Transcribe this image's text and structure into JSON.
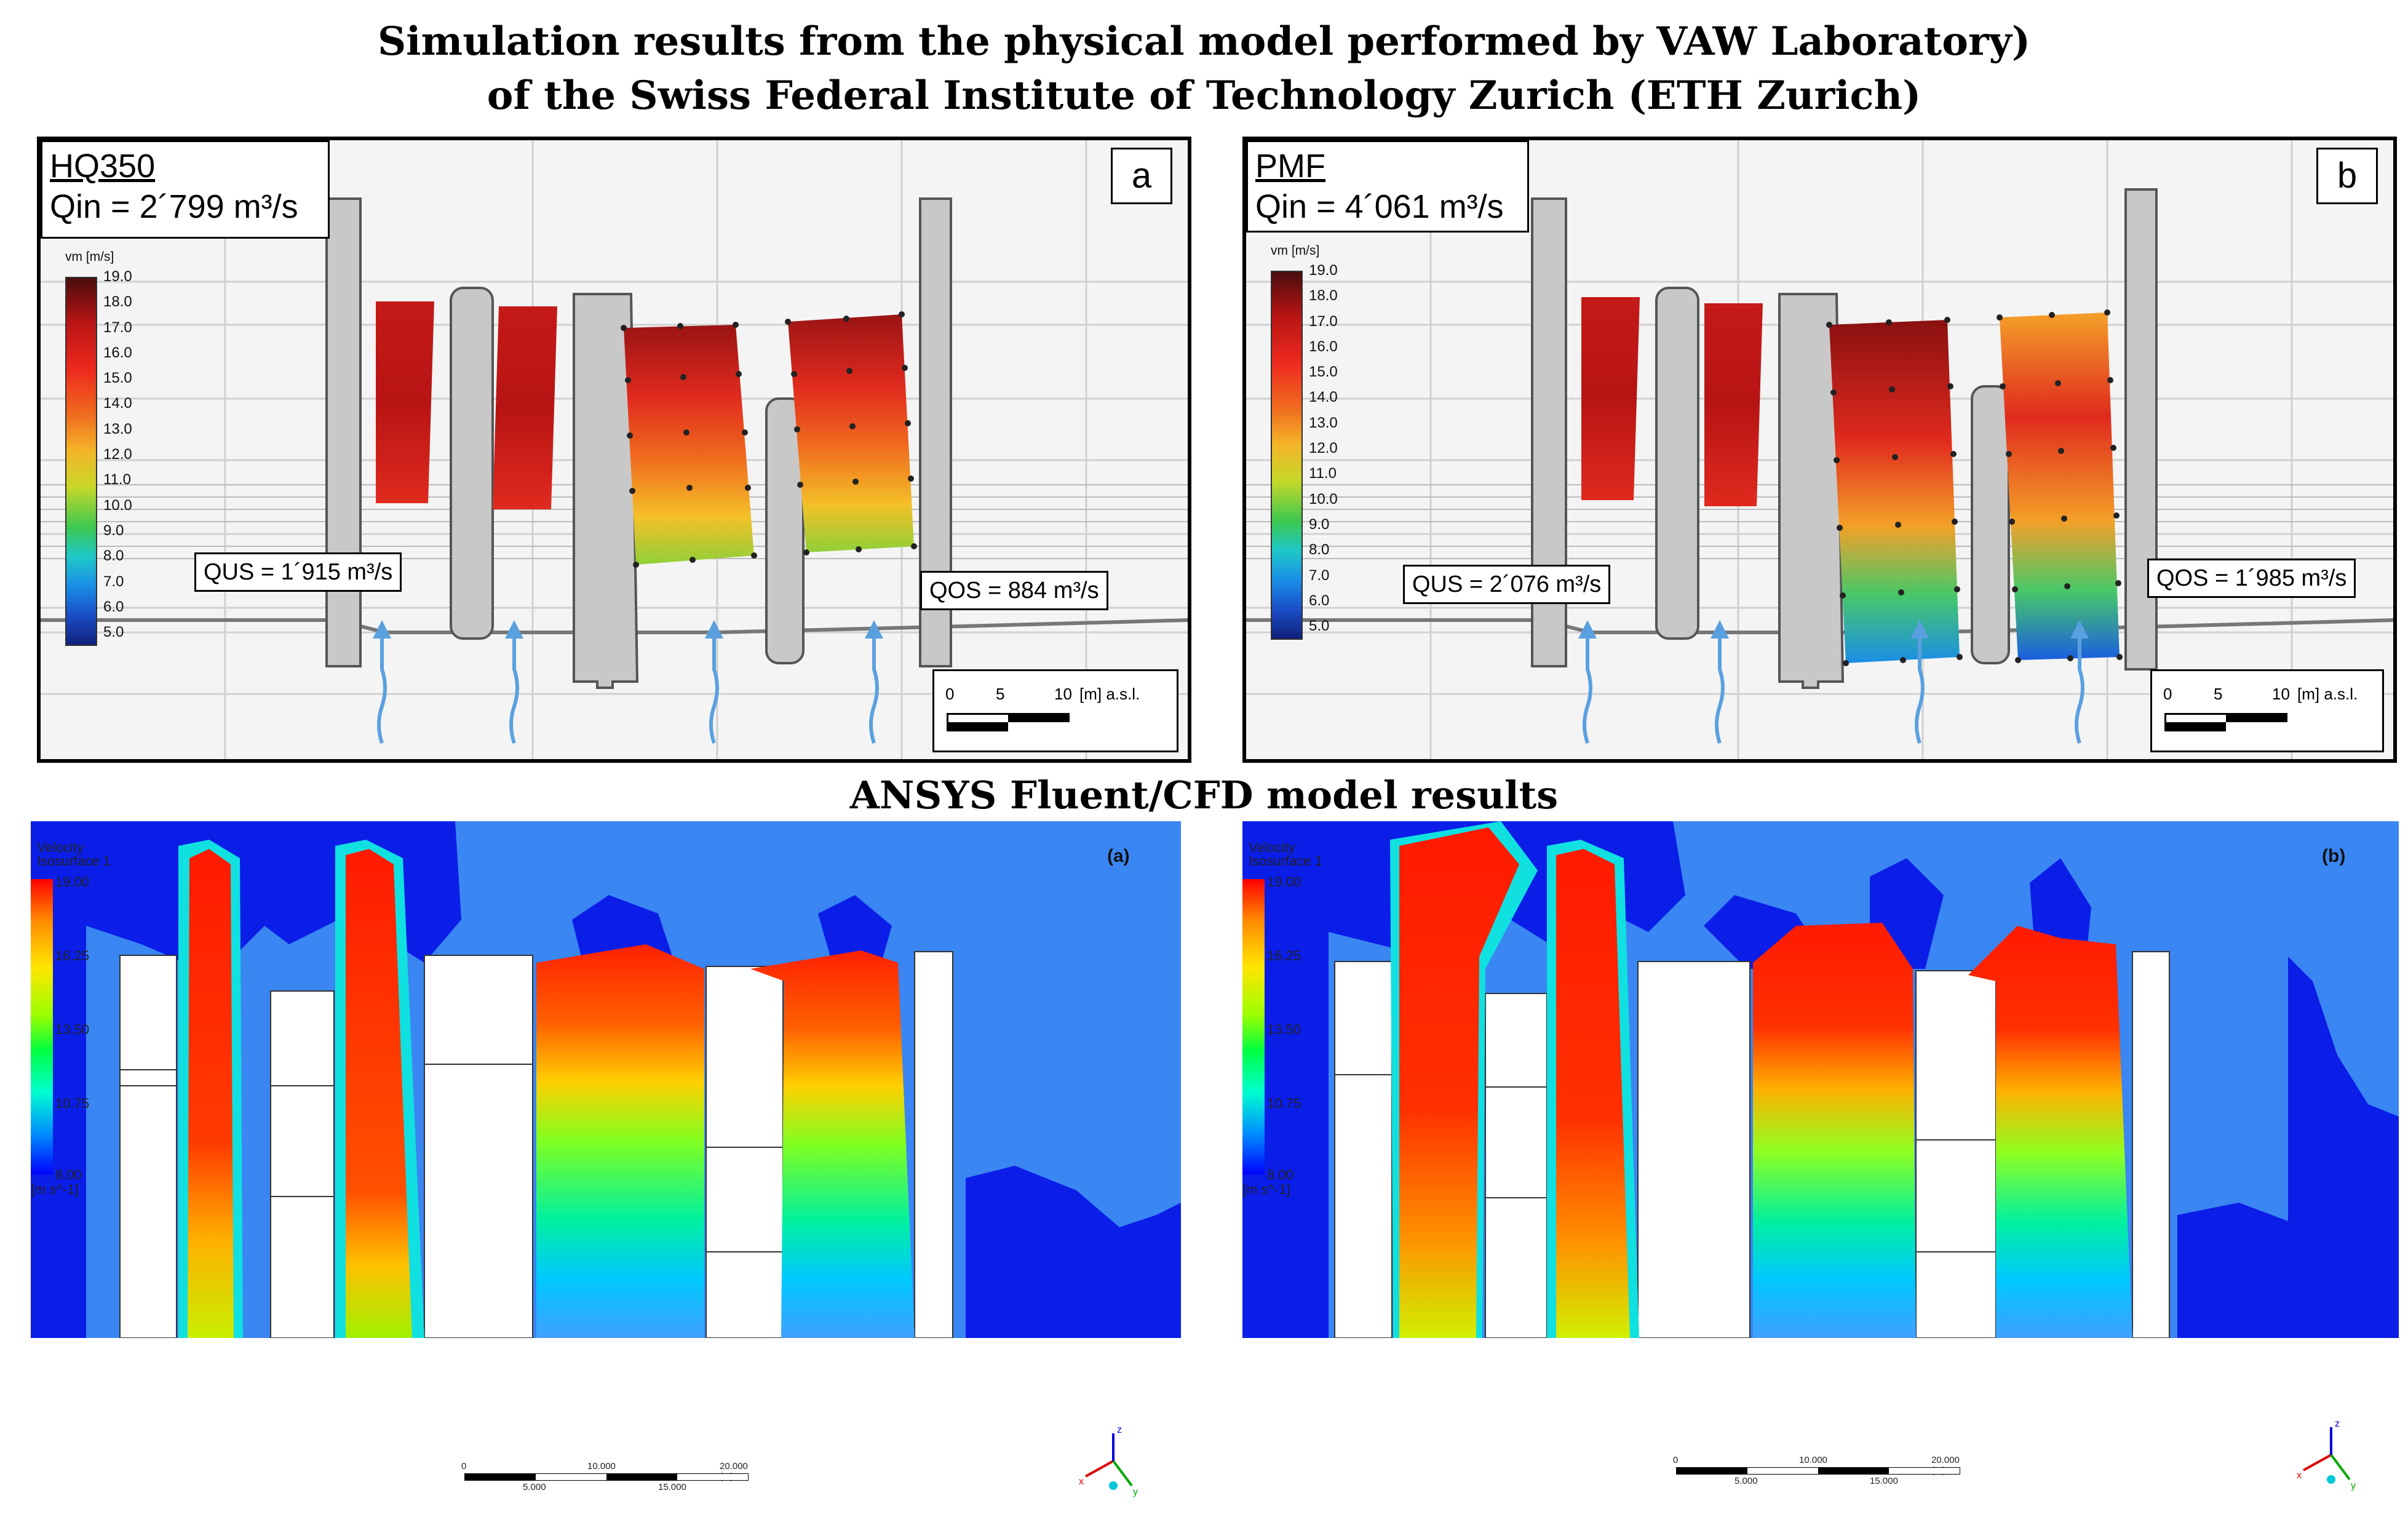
{
  "title": {
    "line1": "Simulation results from the physical model performed by VAW Laboratory)",
    "line2": "of the Swiss Federal Institute of Technology Zurich (ETH Zurich)"
  },
  "section2_title": "ANSYS Fluent/CFD model results",
  "physical": {
    "legend_unit": "vm [m/s]",
    "legend_ticks": [
      "19.0",
      "18.0",
      "17.0",
      "16.0",
      "15.0",
      "14.0",
      "13.0",
      "12.0",
      "11.0",
      "10.0",
      "9.0",
      "8.0",
      "7.0",
      "6.0",
      "5.0"
    ],
    "scale_ticks": [
      "0",
      "5",
      "10",
      "[m] a.s.l."
    ],
    "panel_a": {
      "letter": "a",
      "scenario": "HQ350",
      "q_in": "Qin = 2´799 m³/s",
      "q_us": "QUS = 1´915 m³/s",
      "q_os": "QOS = 884 m³/s"
    },
    "panel_b": {
      "letter": "b",
      "scenario": "PMF",
      "q_in": "Qin = 4´061 m³/s",
      "q_us": "QUS = 2´076 m³/s",
      "q_os": "QOS = 1´985 m³/s"
    }
  },
  "cfd": {
    "legend_title_1": "Velocity",
    "legend_title_2": "Isosurface 1",
    "legend_ticks": [
      "19.00",
      "16.25",
      "13.50",
      "10.75",
      "8.00"
    ],
    "legend_unit": "[m s^-1]",
    "scale_top": [
      "0",
      "10.000",
      "20.000 (m)"
    ],
    "scale_bottom": [
      "5.000",
      "15.000"
    ],
    "axis_labels": [
      "x",
      "y",
      "z"
    ],
    "panel_a": {
      "label": "(a)"
    },
    "panel_b": {
      "label": "(b)"
    }
  },
  "colors": {
    "background_blue": "#3a86f2",
    "deep_blue": "#0a1ee8",
    "red": "#ff1a00"
  }
}
